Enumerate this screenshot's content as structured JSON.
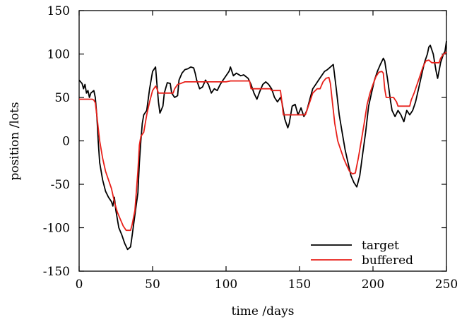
{
  "chart_data": {
    "type": "line",
    "title": "",
    "xlabel": "time /days",
    "ylabel": "position /lots",
    "xlim": [
      0,
      250
    ],
    "ylim": [
      -150,
      150
    ],
    "xticks": [
      0,
      50,
      100,
      150,
      200,
      250
    ],
    "yticks": [
      -150,
      -100,
      -50,
      0,
      50,
      100,
      150
    ],
    "xtick_labels": [
      "0",
      "50",
      "100",
      "150",
      "200",
      "250"
    ],
    "ytick_labels": [
      "-150",
      "-100",
      "-50",
      "0",
      "50",
      "100",
      "150"
    ],
    "grid": false,
    "legend_position": "bottom-right",
    "series": [
      {
        "name": "target",
        "color": "#000000",
        "points": [
          [
            0,
            70
          ],
          [
            2,
            66
          ],
          [
            3,
            60
          ],
          [
            4,
            65
          ],
          [
            5,
            55
          ],
          [
            6,
            58
          ],
          [
            7,
            50
          ],
          [
            8,
            55
          ],
          [
            10,
            58
          ],
          [
            11,
            50
          ],
          [
            12,
            30
          ],
          [
            13,
            0
          ],
          [
            14,
            -25
          ],
          [
            16,
            -45
          ],
          [
            18,
            -58
          ],
          [
            20,
            -65
          ],
          [
            22,
            -70
          ],
          [
            23,
            -75
          ],
          [
            24,
            -65
          ],
          [
            25,
            -80
          ],
          [
            27,
            -100
          ],
          [
            29,
            -108
          ],
          [
            31,
            -118
          ],
          [
            33,
            -125
          ],
          [
            35,
            -122
          ],
          [
            36,
            -110
          ],
          [
            38,
            -85
          ],
          [
            40,
            -60
          ],
          [
            41,
            -25
          ],
          [
            42,
            0
          ],
          [
            43,
            20
          ],
          [
            44,
            30
          ],
          [
            46,
            35
          ],
          [
            48,
            60
          ],
          [
            50,
            80
          ],
          [
            52,
            85
          ],
          [
            53,
            65
          ],
          [
            54,
            45
          ],
          [
            55,
            32
          ],
          [
            57,
            40
          ],
          [
            58,
            55
          ],
          [
            60,
            67
          ],
          [
            62,
            66
          ],
          [
            63,
            55
          ],
          [
            65,
            50
          ],
          [
            67,
            52
          ],
          [
            68,
            70
          ],
          [
            70,
            78
          ],
          [
            72,
            82
          ],
          [
            74,
            83
          ],
          [
            76,
            85
          ],
          [
            78,
            84
          ],
          [
            79,
            78
          ],
          [
            80,
            70
          ],
          [
            82,
            60
          ],
          [
            84,
            62
          ],
          [
            86,
            70
          ],
          [
            88,
            65
          ],
          [
            90,
            55
          ],
          [
            92,
            60
          ],
          [
            94,
            58
          ],
          [
            96,
            65
          ],
          [
            98,
            70
          ],
          [
            100,
            75
          ],
          [
            102,
            80
          ],
          [
            103,
            85
          ],
          [
            105,
            75
          ],
          [
            107,
            78
          ],
          [
            110,
            75
          ],
          [
            112,
            76
          ],
          [
            115,
            72
          ],
          [
            117,
            65
          ],
          [
            119,
            55
          ],
          [
            121,
            48
          ],
          [
            123,
            57
          ],
          [
            125,
            65
          ],
          [
            127,
            68
          ],
          [
            129,
            65
          ],
          [
            131,
            60
          ],
          [
            133,
            50
          ],
          [
            135,
            45
          ],
          [
            137,
            50
          ],
          [
            138,
            45
          ],
          [
            140,
            25
          ],
          [
            142,
            15
          ],
          [
            143,
            20
          ],
          [
            145,
            40
          ],
          [
            147,
            42
          ],
          [
            149,
            30
          ],
          [
            151,
            38
          ],
          [
            153,
            28
          ],
          [
            155,
            35
          ],
          [
            157,
            48
          ],
          [
            159,
            60
          ],
          [
            161,
            65
          ],
          [
            163,
            70
          ],
          [
            165,
            75
          ],
          [
            167,
            80
          ],
          [
            169,
            82
          ],
          [
            171,
            85
          ],
          [
            173,
            88
          ],
          [
            175,
            60
          ],
          [
            177,
            30
          ],
          [
            179,
            10
          ],
          [
            181,
            -10
          ],
          [
            183,
            -25
          ],
          [
            185,
            -40
          ],
          [
            187,
            -48
          ],
          [
            189,
            -53
          ],
          [
            191,
            -40
          ],
          [
            193,
            -15
          ],
          [
            195,
            10
          ],
          [
            197,
            40
          ],
          [
            199,
            55
          ],
          [
            201,
            70
          ],
          [
            203,
            80
          ],
          [
            205,
            88
          ],
          [
            207,
            95
          ],
          [
            208,
            92
          ],
          [
            210,
            70
          ],
          [
            212,
            45
          ],
          [
            213,
            35
          ],
          [
            215,
            28
          ],
          [
            217,
            35
          ],
          [
            219,
            30
          ],
          [
            221,
            22
          ],
          [
            223,
            35
          ],
          [
            225,
            30
          ],
          [
            227,
            35
          ],
          [
            229,
            45
          ],
          [
            231,
            60
          ],
          [
            233,
            75
          ],
          [
            235,
            90
          ],
          [
            237,
            100
          ],
          [
            238,
            108
          ],
          [
            239,
            110
          ],
          [
            241,
            100
          ],
          [
            243,
            80
          ],
          [
            244,
            72
          ],
          [
            246,
            90
          ],
          [
            248,
            100
          ],
          [
            249,
            103
          ],
          [
            250,
            115
          ]
        ]
      },
      {
        "name": "buffered",
        "color": "#e8201a",
        "points": [
          [
            0,
            48
          ],
          [
            9,
            48
          ],
          [
            10,
            47
          ],
          [
            11,
            44
          ],
          [
            12,
            30
          ],
          [
            13,
            15
          ],
          [
            14,
            0
          ],
          [
            16,
            -20
          ],
          [
            18,
            -35
          ],
          [
            20,
            -45
          ],
          [
            22,
            -55
          ],
          [
            24,
            -70
          ],
          [
            26,
            -82
          ],
          [
            28,
            -90
          ],
          [
            30,
            -98
          ],
          [
            32,
            -103
          ],
          [
            35,
            -103
          ],
          [
            36,
            -97
          ],
          [
            38,
            -80
          ],
          [
            40,
            -35
          ],
          [
            41,
            -5
          ],
          [
            42,
            5
          ],
          [
            44,
            10
          ],
          [
            46,
            30
          ],
          [
            48,
            45
          ],
          [
            50,
            58
          ],
          [
            52,
            63
          ],
          [
            53,
            60
          ],
          [
            54,
            55
          ],
          [
            60,
            55
          ],
          [
            64,
            55
          ],
          [
            65,
            60
          ],
          [
            67,
            65
          ],
          [
            69,
            66
          ],
          [
            72,
            68
          ],
          [
            100,
            68
          ],
          [
            103,
            69
          ],
          [
            116,
            69
          ],
          [
            117,
            60
          ],
          [
            130,
            60
          ],
          [
            131,
            58
          ],
          [
            137,
            58
          ],
          [
            138,
            45
          ],
          [
            139,
            30
          ],
          [
            154,
            30
          ],
          [
            155,
            35
          ],
          [
            157,
            45
          ],
          [
            159,
            55
          ],
          [
            162,
            60
          ],
          [
            164,
            60
          ],
          [
            166,
            68
          ],
          [
            168,
            72
          ],
          [
            170,
            73
          ],
          [
            171,
            66
          ],
          [
            172,
            50
          ],
          [
            174,
            20
          ],
          [
            176,
            0
          ],
          [
            178,
            -10
          ],
          [
            180,
            -20
          ],
          [
            182,
            -28
          ],
          [
            184,
            -35
          ],
          [
            186,
            -38
          ],
          [
            188,
            -37
          ],
          [
            190,
            -20
          ],
          [
            192,
            0
          ],
          [
            194,
            20
          ],
          [
            196,
            42
          ],
          [
            198,
            55
          ],
          [
            200,
            65
          ],
          [
            202,
            74
          ],
          [
            204,
            79
          ],
          [
            206,
            80
          ],
          [
            207,
            78
          ],
          [
            208,
            60
          ],
          [
            209,
            50
          ],
          [
            214,
            50
          ],
          [
            216,
            45
          ],
          [
            217,
            40
          ],
          [
            225,
            40
          ],
          [
            226,
            47
          ],
          [
            228,
            55
          ],
          [
            230,
            65
          ],
          [
            232,
            75
          ],
          [
            234,
            85
          ],
          [
            236,
            92
          ],
          [
            238,
            93
          ],
          [
            240,
            90
          ],
          [
            245,
            90
          ],
          [
            246,
            95
          ],
          [
            248,
            100
          ],
          [
            250,
            102
          ]
        ]
      }
    ]
  }
}
